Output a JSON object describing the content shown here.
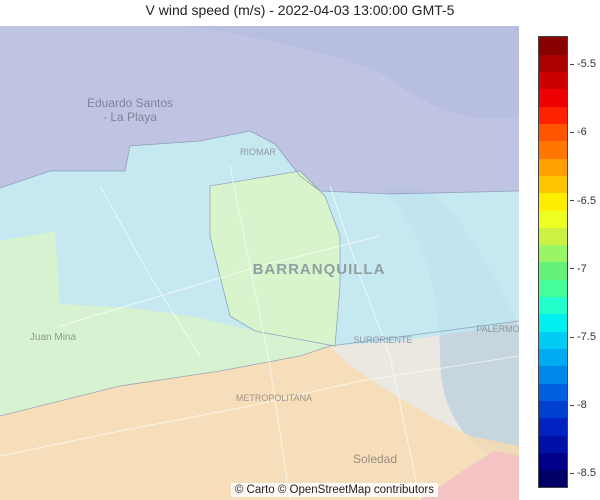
{
  "title": "V wind speed (m/s) - 2022-04-03 13:00:00 GMT-5",
  "attribution": "© Carto © OpenStreetMap contributors",
  "map_labels": {
    "eduardo_santos_1": "Eduardo Santos",
    "eduardo_santos_2": "- La Playa",
    "riomar": "RIOMAR",
    "barranquilla": "BARRANQUILLA",
    "juan_mina": "Juan Mina",
    "suroriente": "SURORIENTE",
    "palermo": "PALERMO",
    "metropolitana": "METROPOLITANA",
    "soledad": "Soledad"
  },
  "colorbar": {
    "min": -8.6,
    "max": -5.3,
    "ticks": [
      {
        "label": "-5.5",
        "value": -5.5
      },
      {
        "label": "-6",
        "value": -6.0
      },
      {
        "label": "-6.5",
        "value": -6.5
      },
      {
        "label": "-7",
        "value": -7.0
      },
      {
        "label": "-7.5",
        "value": -7.5
      },
      {
        "label": "-8",
        "value": -8.0
      },
      {
        "label": "-8.5",
        "value": -8.5
      }
    ],
    "colors": [
      "#000066",
      "#00008b",
      "#0011a8",
      "#0022c0",
      "#0040d0",
      "#0060dd",
      "#0088e8",
      "#00aaf0",
      "#00ccf5",
      "#00f0f0",
      "#22ffcc",
      "#44ff99",
      "#66f27a",
      "#99f566",
      "#ccf044",
      "#eeff22",
      "#ffee00",
      "#ffc400",
      "#ffa000",
      "#ff7700",
      "#ff5500",
      "#ff2200",
      "#ee0000",
      "#cc0000",
      "#aa0000",
      "#880000"
    ]
  },
  "regions_colors": {
    "north": "#b6bde0",
    "cyan": "#bfe8f2",
    "center": "#d8f5c8",
    "west": "#d4f3cc",
    "south": "#f7dcb2",
    "southeast": "#f4c0c4"
  }
}
